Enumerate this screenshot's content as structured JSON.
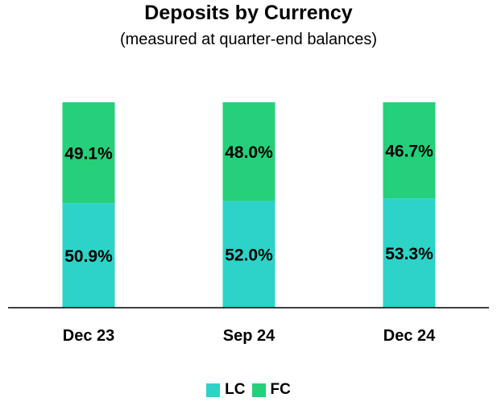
{
  "chart_data": {
    "type": "bar",
    "stacked": true,
    "percent_stacked": true,
    "title": "Deposits by Currency",
    "subtitle": "(measured at quarter-end balances)",
    "categories": [
      "Dec 23",
      "Sep 24",
      "Dec 24"
    ],
    "series": [
      {
        "name": "LC",
        "values": [
          50.9,
          52.0,
          53.3
        ],
        "labels": [
          "50.9%",
          "52.0%",
          "53.3%"
        ],
        "color": "#2DD3C7"
      },
      {
        "name": "FC",
        "values": [
          49.1,
          48.0,
          46.7
        ],
        "labels": [
          "49.1%",
          "48.0%",
          "46.7%"
        ],
        "color": "#26CF7A"
      }
    ],
    "ylim": [
      0,
      100
    ],
    "grid": false,
    "legend_position": "bottom"
  }
}
